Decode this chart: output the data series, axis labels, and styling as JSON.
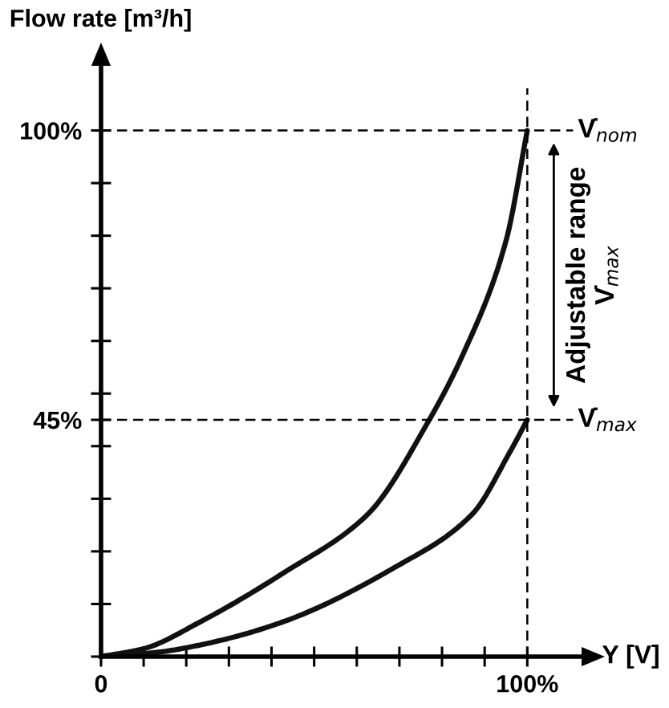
{
  "chart_data": {
    "type": "line",
    "xlabel": "Y [V]",
    "ylabel": "Flow rate [m³/h]",
    "series": [
      {
        "color": "#111111",
        "x": [
          0,
          10,
          23.5,
          43,
          62.5,
          77,
          85,
          95,
          100
        ],
        "values": [
          0,
          1.5,
          6.7,
          16,
          27,
          45,
          57.6,
          79,
          100
        ]
      },
      {
        "color": "#111111",
        "x": [
          0,
          13,
          26,
          43,
          69,
          87,
          96,
          100
        ],
        "values": [
          0,
          0.8,
          2.7,
          6.7,
          17,
          27,
          39,
          45
        ]
      }
    ],
    "xlim": [
      0,
      113
    ],
    "ylim": [
      0,
      112.5
    ],
    "xticks": [
      {
        "value": 0,
        "label": "0"
      },
      {
        "value": 10,
        "label": null
      },
      {
        "value": 20,
        "label": null
      },
      {
        "value": 30,
        "label": null
      },
      {
        "value": 40,
        "label": null
      },
      {
        "value": 50,
        "label": null
      },
      {
        "value": 60,
        "label": null
      },
      {
        "value": 70,
        "label": null
      },
      {
        "value": 80,
        "label": null
      },
      {
        "value": 90,
        "label": null
      },
      {
        "value": 100,
        "label": "100%"
      }
    ],
    "yticks": [
      {
        "value": 0,
        "label": null
      },
      {
        "value": 10,
        "label": null
      },
      {
        "value": 20,
        "label": null
      },
      {
        "value": 30,
        "label": null
      },
      {
        "value": 40,
        "label": null
      },
      {
        "value": 45,
        "label": "45%"
      },
      {
        "value": 50,
        "label": null
      },
      {
        "value": 60,
        "label": null
      },
      {
        "value": 70,
        "label": null
      },
      {
        "value": 80,
        "label": null
      },
      {
        "value": 90,
        "label": null
      },
      {
        "value": 100,
        "label": "100%"
      }
    ],
    "ref_lines": [
      {
        "axis": "y",
        "value": 100,
        "label": "V̇$_{nom}$",
        "line_style": "dashed"
      },
      {
        "axis": "y",
        "value": 45,
        "label": "V̇$_{max}$",
        "line_style": "dashed"
      },
      {
        "axis": "x",
        "value": 100,
        "line_style": "dashed"
      }
    ],
    "annotations": [
      "Adjustable range\nV̇$_{max}$"
    ],
    "grid": false,
    "legend": false,
    "marker": "none",
    "line_style": "solid"
  }
}
